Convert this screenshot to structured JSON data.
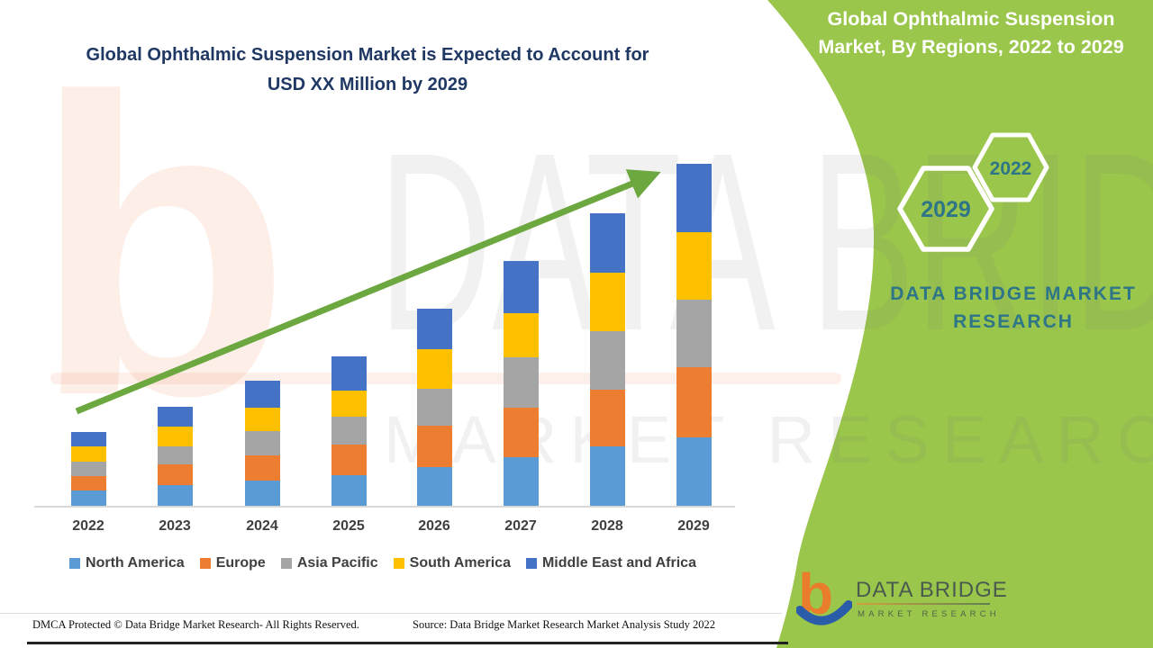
{
  "title": {
    "lines": [
      "Global Ophthalmic Suspension Market is Expected to Account for",
      "USD XX Million by 2029"
    ],
    "color": "#1F3864"
  },
  "chart_data": {
    "type": "bar",
    "stacked": true,
    "title": "Global Ophthalmic Suspension Market is Expected to Account for USD XX Million by 2029",
    "xlabel": "",
    "ylabel": "",
    "units": "USD Million (amounts masked as XX; no y-axis shown, values are relative heights)",
    "grid": false,
    "legend_position": "bottom",
    "categories": [
      "2022",
      "2023",
      "2024",
      "2025",
      "2026",
      "2027",
      "2028",
      "2029"
    ],
    "series": [
      {
        "name": "North America",
        "color": "#5B9BD5",
        "values": [
          17,
          23,
          28,
          34,
          43,
          54,
          66,
          76
        ]
      },
      {
        "name": "Europe",
        "color": "#ED7D31",
        "values": [
          16,
          23,
          28,
          34,
          46,
          55,
          63,
          78
        ]
      },
      {
        "name": "Asia Pacific",
        "color": "#A5A5A5",
        "values": [
          16,
          20,
          27,
          31,
          41,
          56,
          65,
          75
        ]
      },
      {
        "name": "South America",
        "color": "#FFC000",
        "values": [
          17,
          22,
          26,
          29,
          44,
          49,
          65,
          75
        ]
      },
      {
        "name": "Middle East and Africa",
        "color": "#4472C4",
        "values": [
          16,
          22,
          30,
          38,
          45,
          58,
          66,
          76
        ]
      }
    ],
    "totals": [
      82,
      110,
      139,
      166,
      219,
      272,
      325,
      380
    ],
    "trend_arrow": {
      "present": true,
      "color": "#6CA83F",
      "direction": "up-right"
    }
  },
  "right_panel": {
    "background_color": "#9AC64B",
    "heading_lines": [
      "Global Ophthalmic Suspension",
      "Market, By Regions, 2022 to 2029"
    ],
    "heading_color": "#FFFFFF",
    "hexagon_large_label": "2029",
    "hexagon_small_label": "2022",
    "hexagon_label_color": "#2E7587",
    "brand_lines": [
      "DATA BRIDGE MARKET",
      "RESEARCH"
    ],
    "brand_color": "#2E7587"
  },
  "logo": {
    "letter": "b",
    "orange": "#E87D2B",
    "blue": "#2A5CAA",
    "name": "DATA BRIDGE",
    "subtitle": "MARKET RESEARCH"
  },
  "watermark": {
    "letter": "b",
    "row1": "DATA BRIDGE",
    "row2": "MARKET RESEARCH"
  },
  "footer": {
    "left": "DMCA Protected © Data Bridge Market Research- All Rights Reserved.",
    "right": "Source: Data Bridge Market Research Market Analysis Study 2022"
  }
}
